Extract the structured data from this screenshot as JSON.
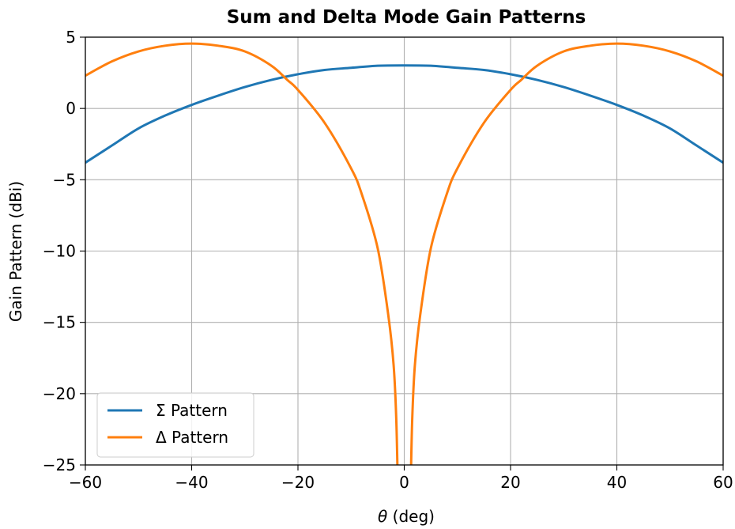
{
  "chart_data": {
    "type": "line",
    "title": "Sum and Delta Mode Gain Patterns",
    "xlabel_symbol": "θ",
    "xlabel_unit": " (deg)",
    "ylabel": "Gain Pattern (dBi)",
    "xlim": [
      -60,
      60
    ],
    "ylim": [
      -25,
      5
    ],
    "xticks": [
      -60,
      -40,
      -20,
      0,
      20,
      40,
      60
    ],
    "yticks": [
      -25,
      -20,
      -15,
      -10,
      -5,
      0,
      5
    ],
    "xtick_labels": [
      "−60",
      "−40",
      "−20",
      "0",
      "20",
      "40",
      "60"
    ],
    "ytick_labels": [
      "−25",
      "−20",
      "−15",
      "−10",
      "−5",
      "0",
      "5"
    ],
    "grid": true,
    "legend_position": "lower-left",
    "series": [
      {
        "name": "Σ Pattern",
        "color": "#1f77b4",
        "x": [
          -60,
          -55,
          -50,
          -45,
          -40,
          -35,
          -30,
          -25,
          -20,
          -15,
          -10,
          -5,
          0,
          5,
          10,
          15,
          20,
          25,
          30,
          35,
          40,
          45,
          50,
          55,
          60
        ],
        "y": [
          -3.8,
          -2.6,
          -1.4,
          -0.5,
          0.25,
          0.9,
          1.5,
          2.0,
          2.4,
          2.7,
          2.85,
          3.0,
          3.02,
          3.0,
          2.85,
          2.7,
          2.4,
          2.0,
          1.5,
          0.9,
          0.25,
          -0.5,
          -1.4,
          -2.6,
          -3.8
        ]
      },
      {
        "name": "Δ Pattern",
        "color": "#ff7f0e",
        "x": [
          -60,
          -55,
          -50,
          -45,
          -40,
          -35,
          -30,
          -25,
          -22,
          -20,
          -15,
          -10,
          -8,
          -5,
          -3,
          -2,
          -1.5,
          -1.2,
          1.2,
          1.5,
          2,
          3,
          5,
          8,
          10,
          15,
          20,
          22,
          25,
          30,
          35,
          40,
          45,
          50,
          55,
          60
        ],
        "y": [
          2.3,
          3.3,
          4.0,
          4.4,
          4.55,
          4.4,
          4.0,
          3.0,
          2.0,
          1.3,
          -1.0,
          -4.2,
          -6.0,
          -9.8,
          -14.5,
          -18.0,
          -21.8,
          -25,
          -25,
          -21.8,
          -18.0,
          -14.5,
          -9.8,
          -6.0,
          -4.2,
          -1.0,
          1.3,
          2.0,
          3.0,
          4.0,
          4.4,
          4.55,
          4.4,
          4.0,
          3.3,
          2.3
        ]
      }
    ]
  }
}
